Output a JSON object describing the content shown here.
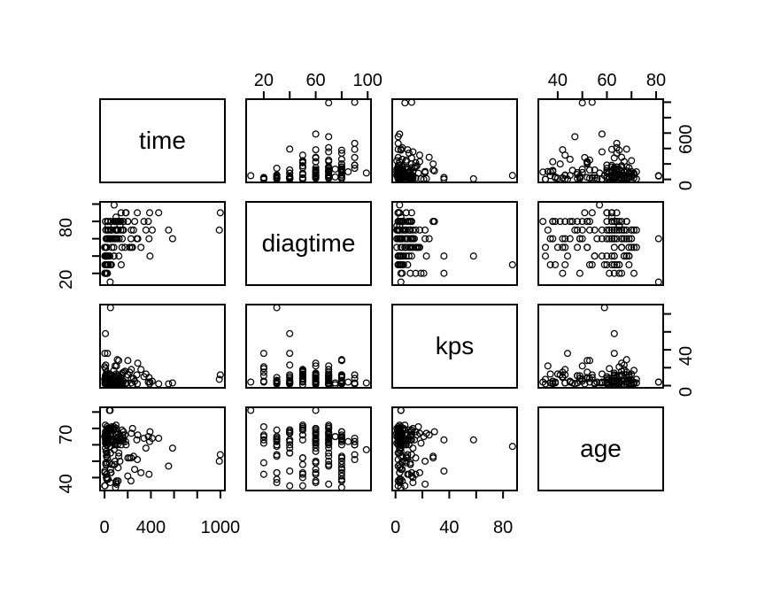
{
  "chart_data": {
    "type": "scatter",
    "subtype": "scatterplot-matrix-pairs",
    "title": "",
    "background": "#ffffff",
    "foreground": "#000000",
    "marker": {
      "shape": "open-circle",
      "radius_px": 3.4,
      "color": "#000000"
    },
    "grid": false,
    "n_points": 137,
    "variables": [
      {
        "label": "time",
        "ticks": [
          0,
          200,
          400,
          600,
          800,
          1000
        ],
        "x_label_ticks": [
          0,
          400,
          1000
        ],
        "y_label_ticks": [
          0,
          600
        ],
        "x_axis_side": "bottom",
        "y_axis_side": "right"
      },
      {
        "label": "diagtime",
        "ticks": [
          20,
          40,
          60,
          80,
          100
        ],
        "x_label_ticks": [
          20,
          60,
          100
        ],
        "y_label_ticks": [
          20,
          80
        ],
        "x_axis_side": "top",
        "y_axis_side": "left"
      },
      {
        "label": "kps",
        "ticks": [
          0,
          20,
          40,
          60,
          80
        ],
        "x_label_ticks": [
          0,
          40,
          80
        ],
        "y_label_ticks": [
          0,
          40
        ],
        "x_axis_side": "bottom",
        "y_axis_side": "right"
      },
      {
        "label": "age",
        "ticks": [
          40,
          50,
          60,
          70,
          80
        ],
        "x_label_ticks": [
          40,
          60,
          80
        ],
        "y_label_ticks": [
          40,
          70
        ],
        "x_axis_side": "top",
        "y_axis_side": "left"
      }
    ],
    "observations": {
      "time": [
        72,
        411,
        228,
        126,
        118,
        10,
        82,
        110,
        314,
        100,
        42,
        8,
        144,
        25,
        11,
        30,
        384,
        4,
        54,
        13,
        123,
        97,
        153,
        59,
        117,
        16,
        151,
        22,
        56,
        21,
        18,
        139,
        20,
        31,
        52,
        287,
        18,
        51,
        122,
        27,
        54,
        7,
        63,
        392,
        10,
        8,
        92,
        35,
        117,
        132,
        12,
        162,
        3,
        95,
        177,
        162,
        216,
        553,
        278,
        12,
        260,
        200,
        156,
        182,
        143,
        105,
        103,
        250,
        100,
        999,
        112,
        87,
        231,
        242,
        991,
        111,
        1,
        587,
        389,
        33,
        25,
        357,
        467,
        201,
        1,
        30,
        44,
        283,
        15,
        25,
        103,
        21,
        13,
        87,
        2,
        20,
        7,
        24,
        99,
        8,
        99,
        61,
        25,
        95,
        80,
        51,
        29,
        24,
        18,
        83,
        31,
        51,
        90,
        52,
        73,
        8,
        36,
        48,
        7,
        140,
        186,
        84,
        19,
        45,
        80,
        52,
        164,
        19,
        53,
        15,
        43,
        340,
        133,
        111,
        231,
        378,
        49
      ],
      "diagtime": [
        60,
        70,
        60,
        60,
        70,
        20,
        40,
        80,
        50,
        70,
        60,
        40,
        30,
        80,
        70,
        60,
        60,
        40,
        80,
        60,
        40,
        60,
        60,
        30,
        80,
        30,
        50,
        60,
        80,
        40,
        20,
        80,
        30,
        75,
        70,
        60,
        30,
        60,
        80,
        60,
        70,
        50,
        50,
        40,
        40,
        20,
        70,
        40,
        80,
        80,
        50,
        80,
        30,
        80,
        50,
        80,
        50,
        70,
        60,
        40,
        80,
        80,
        70,
        90,
        90,
        80,
        80,
        70,
        60,
        90,
        80,
        80,
        50,
        50,
        70,
        70,
        20,
        60,
        90,
        30,
        20,
        70,
        90,
        80,
        50,
        70,
        60,
        90,
        50,
        30,
        70,
        20,
        30,
        60,
        40,
        30,
        20,
        60,
        70,
        80,
        85,
        70,
        70,
        70,
        50,
        30,
        40,
        40,
        40,
        99,
        80,
        60,
        60,
        60,
        60,
        50,
        70,
        10,
        40,
        70,
        90,
        80,
        50,
        40,
        40,
        60,
        70,
        30,
        60,
        30,
        60,
        80,
        75,
        60,
        70,
        80,
        30
      ],
      "kps": [
        7,
        5,
        3,
        9,
        11,
        5,
        10,
        29,
        18,
        6,
        4,
        58,
        4,
        9,
        11,
        3,
        9,
        2,
        4,
        4,
        3,
        5,
        14,
        2,
        3,
        4,
        12,
        4,
        12,
        2,
        15,
        2,
        5,
        3,
        2,
        25,
        4,
        1,
        28,
        8,
        1,
        7,
        11,
        4,
        23,
        19,
        10,
        6,
        2,
        5,
        4,
        5,
        3,
        4,
        16,
        5,
        15,
        2,
        12,
        12,
        5,
        12,
        2,
        2,
        8,
        11,
        5,
        8,
        13,
        12,
        6,
        3,
        8,
        1,
        7,
        3,
        21,
        3,
        2,
        6,
        36,
        13,
        2,
        28,
        7,
        11,
        13,
        2,
        13,
        2,
        22,
        4,
        2,
        2,
        36,
        9,
        11,
        8,
        3,
        2,
        4,
        2,
        2,
        1,
        17,
        87,
        8,
        2,
        5,
        3,
        3,
        5,
        22,
        3,
        3,
        5,
        8,
        4,
        4,
        3,
        3,
        4,
        10,
        3,
        4,
        4,
        15,
        4,
        12,
        5,
        11,
        10,
        1,
        5,
        18,
        4,
        3
      ],
      "age": [
        69,
        64,
        38,
        63,
        65,
        49,
        69,
        68,
        43,
        70,
        81,
        63,
        63,
        52,
        48,
        61,
        42,
        35,
        63,
        56,
        55,
        67,
        63,
        65,
        46,
        53,
        69,
        68,
        43,
        55,
        42,
        64,
        65,
        65,
        55,
        66,
        60,
        67,
        53,
        62,
        67,
        72,
        48,
        68,
        67,
        61,
        60,
        62,
        38,
        50,
        63,
        64,
        43,
        34,
        66,
        62,
        52,
        47,
        63,
        68,
        45,
        41,
        66,
        62,
        60,
        66,
        38,
        53,
        37,
        54,
        60,
        48,
        52,
        70,
        50,
        62,
        65,
        58,
        62,
        64,
        63,
        58,
        64,
        52,
        35,
        63,
        70,
        51,
        40,
        69,
        36,
        71,
        62,
        60,
        44,
        54,
        66,
        49,
        72,
        68,
        62,
        71,
        70,
        61,
        71,
        59,
        67,
        60,
        69,
        57,
        39,
        62,
        50,
        43,
        70,
        66,
        61,
        81,
        58,
        63,
        60,
        62,
        42,
        69,
        63,
        45,
        68,
        39,
        66,
        63,
        49,
        64,
        65,
        64,
        67,
        65,
        37
      ]
    }
  }
}
